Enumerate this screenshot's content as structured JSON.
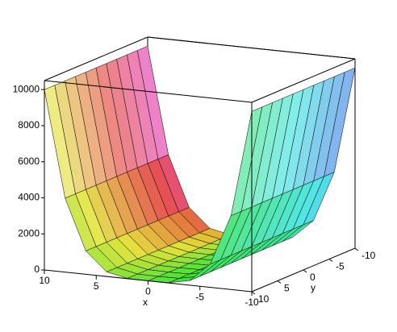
{
  "chart_data": {
    "type": "surface",
    "x": [
      -10,
      -8,
      -6,
      -4,
      -2,
      0,
      2,
      4,
      6,
      8,
      10
    ],
    "y": [
      -10,
      -8,
      -6,
      -4,
      -2,
      0,
      2,
      4,
      6,
      8,
      10
    ],
    "z": [
      [
        10000,
        10000,
        10000,
        10000,
        10000,
        10000,
        10000,
        10000,
        10000,
        10000,
        10000
      ],
      [
        4096,
        4096,
        4096,
        4096,
        4096,
        4096,
        4096,
        4096,
        4096,
        4096,
        4096
      ],
      [
        1296,
        1296,
        1296,
        1296,
        1296,
        1296,
        1296,
        1296,
        1296,
        1296,
        1296
      ],
      [
        256,
        256,
        256,
        256,
        256,
        256,
        256,
        256,
        256,
        256,
        256
      ],
      [
        16,
        16,
        16,
        16,
        16,
        16,
        16,
        16,
        16,
        16,
        16
      ],
      [
        0,
        0,
        0,
        0,
        0,
        0,
        0,
        0,
        0,
        0,
        0
      ],
      [
        16,
        16,
        16,
        16,
        16,
        16,
        16,
        16,
        16,
        16,
        16
      ],
      [
        256,
        256,
        256,
        256,
        256,
        256,
        256,
        256,
        256,
        256,
        256
      ],
      [
        1296,
        1296,
        1296,
        1296,
        1296,
        1296,
        1296,
        1296,
        1296,
        1296,
        1296
      ],
      [
        4096,
        4096,
        4096,
        4096,
        4096,
        4096,
        4096,
        4096,
        4096,
        4096,
        4096
      ],
      [
        10000,
        10000,
        10000,
        10000,
        10000,
        10000,
        10000,
        10000,
        10000,
        10000,
        10000
      ]
    ],
    "xlim": [
      -10,
      10
    ],
    "ylim": [
      -10,
      10
    ],
    "zlim": [
      0,
      10500
    ],
    "xticks": [
      -10,
      -5,
      0,
      5,
      10
    ],
    "yticks": [
      -10,
      -5,
      0,
      5,
      10
    ],
    "zticks": [
      0,
      2000,
      4000,
      6000,
      8000,
      10000
    ],
    "xlabel": "x",
    "ylabel": "y"
  }
}
